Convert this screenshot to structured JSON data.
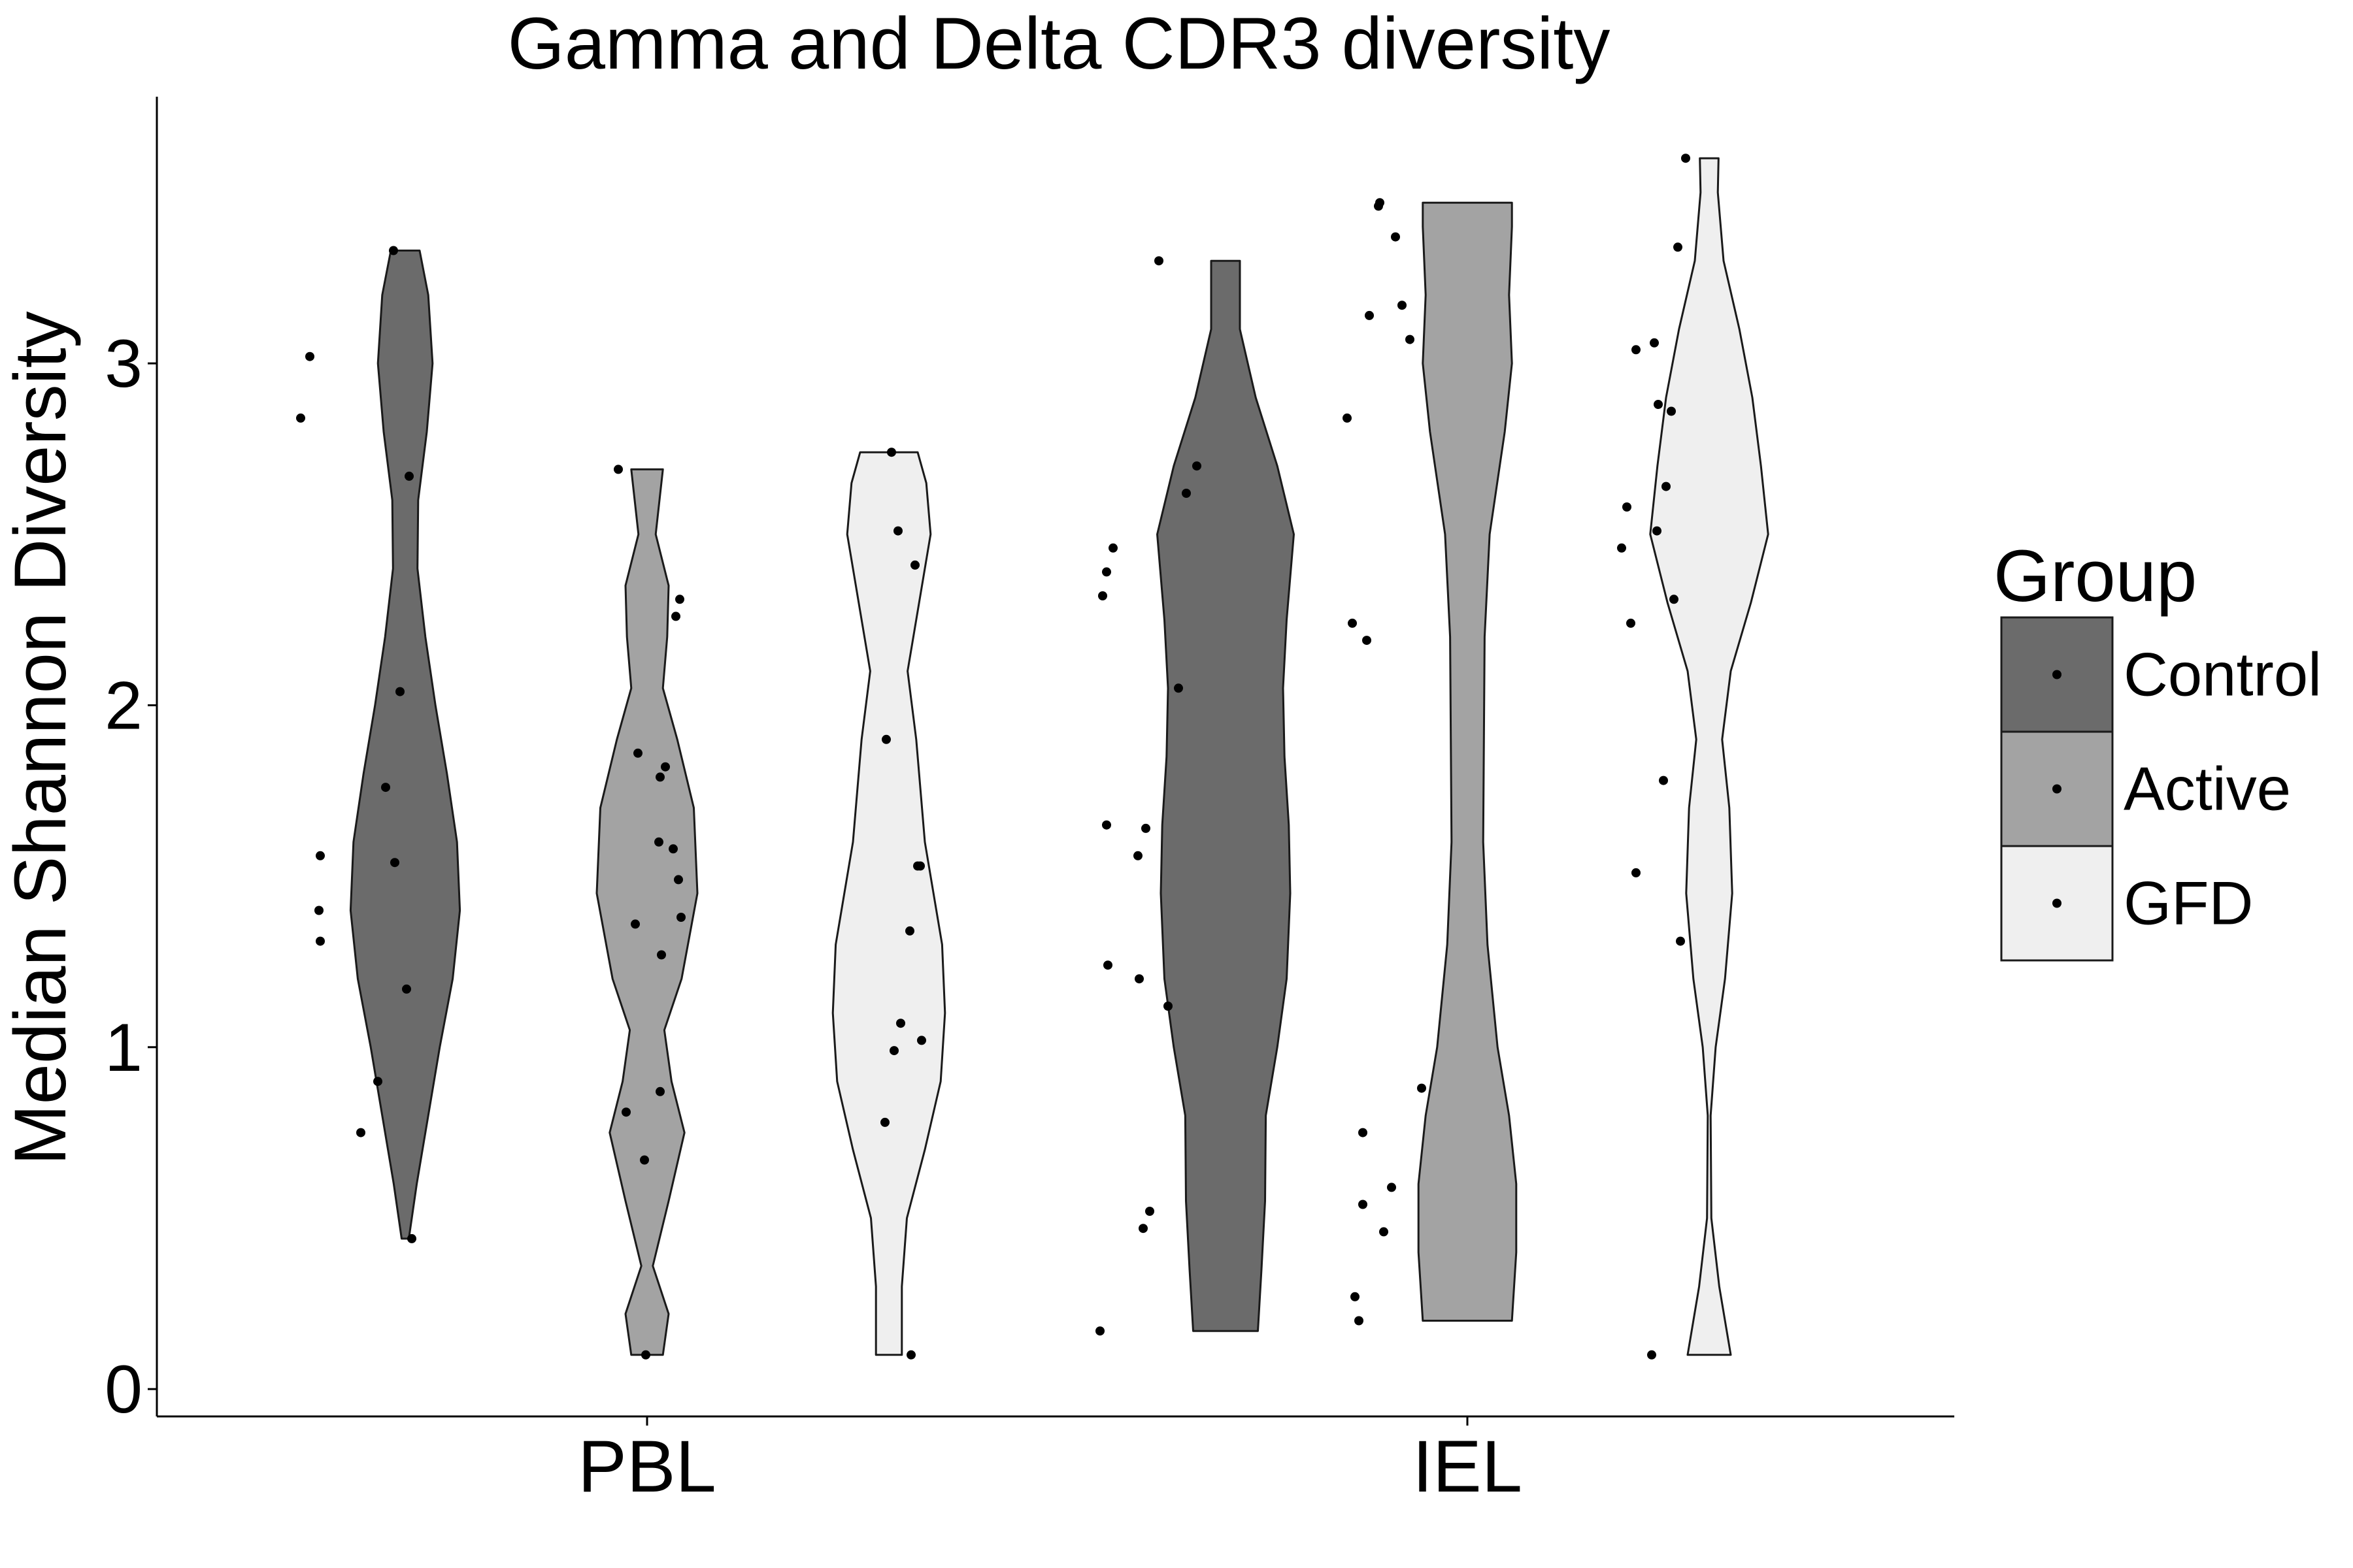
{
  "chart_data": {
    "type": "violin",
    "title": "Gamma and Delta CDR3 diversity",
    "xlabel": "",
    "ylabel": "Median Shannon Diversity",
    "categories": [
      "PBL",
      "IEL"
    ],
    "y_ticks": [
      "0",
      "1",
      "2",
      "3"
    ],
    "ylim": [
      -0.08,
      3.78
    ],
    "legend": {
      "title": "Group",
      "position": "right"
    },
    "grid": false,
    "series": [
      {
        "name": "Control",
        "color": "#6b6b6b",
        "violins": [
          {
            "category": "PBL",
            "range": [
              0.44,
              3.33
            ],
            "density_profile": [
              [
                0.44,
                0.05
              ],
              [
                0.6,
                0.16
              ],
              [
                0.8,
                0.32
              ],
              [
                1.0,
                0.48
              ],
              [
                1.2,
                0.66
              ],
              [
                1.4,
                0.76
              ],
              [
                1.6,
                0.72
              ],
              [
                1.8,
                0.58
              ],
              [
                2.0,
                0.42
              ],
              [
                2.2,
                0.28
              ],
              [
                2.4,
                0.17
              ],
              [
                2.6,
                0.18
              ],
              [
                2.8,
                0.3
              ],
              [
                3.0,
                0.38
              ],
              [
                3.2,
                0.32
              ],
              [
                3.33,
                0.2
              ]
            ],
            "points": [
              [
                -0.8,
                2.84
              ],
              [
                -0.73,
                3.02
              ],
              [
                -0.65,
                1.56
              ],
              [
                -0.66,
                1.4
              ],
              [
                -0.65,
                1.31
              ],
              [
                -0.34,
                0.75
              ],
              [
                -0.21,
                0.9
              ],
              [
                -0.15,
                1.76
              ],
              [
                -0.09,
                3.33
              ],
              [
                -0.08,
                1.54
              ],
              [
                -0.04,
                2.04
              ],
              [
                0.01,
                1.17
              ],
              [
                0.03,
                2.67
              ],
              [
                0.05,
                0.44
              ]
            ]
          },
          {
            "category": "IEL",
            "range": [
              0.17,
              3.3
            ],
            "density_profile": [
              [
                0.17,
                0.45
              ],
              [
                0.35,
                0.5
              ],
              [
                0.55,
                0.55
              ],
              [
                0.8,
                0.56
              ],
              [
                1.0,
                0.72
              ],
              [
                1.2,
                0.85
              ],
              [
                1.45,
                0.9
              ],
              [
                1.65,
                0.88
              ],
              [
                1.85,
                0.82
              ],
              [
                2.05,
                0.8
              ],
              [
                2.25,
                0.85
              ],
              [
                2.5,
                0.95
              ],
              [
                2.7,
                0.72
              ],
              [
                2.9,
                0.42
              ],
              [
                3.1,
                0.2
              ],
              [
                3.3,
                0.2
              ]
            ],
            "points": [
              [
                -0.96,
                0.17
              ],
              [
                -0.94,
                2.32
              ],
              [
                -0.91,
                2.39
              ],
              [
                -0.91,
                1.65
              ],
              [
                -0.9,
                1.24
              ],
              [
                -0.86,
                2.46
              ],
              [
                -0.67,
                1.56
              ],
              [
                -0.66,
                1.2
              ],
              [
                -0.63,
                0.47
              ],
              [
                -0.61,
                1.64
              ],
              [
                -0.58,
                0.52
              ],
              [
                -0.51,
                3.3
              ],
              [
                -0.44,
                1.12
              ],
              [
                -0.36,
                2.05
              ],
              [
                -0.3,
                2.62
              ],
              [
                -0.22,
                2.7
              ]
            ]
          }
        ]
      },
      {
        "name": "Active",
        "color": "#a3a3a3",
        "violins": [
          {
            "category": "PBL",
            "range": [
              0.1,
              2.69
            ],
            "density_profile": [
              [
                0.1,
                0.22
              ],
              [
                0.22,
                0.3
              ],
              [
                0.36,
                0.08
              ],
              [
                0.55,
                0.3
              ],
              [
                0.75,
                0.52
              ],
              [
                0.9,
                0.34
              ],
              [
                1.05,
                0.24
              ],
              [
                1.2,
                0.48
              ],
              [
                1.45,
                0.7
              ],
              [
                1.7,
                0.65
              ],
              [
                1.9,
                0.42
              ],
              [
                2.05,
                0.22
              ],
              [
                2.2,
                0.28
              ],
              [
                2.35,
                0.3
              ],
              [
                2.5,
                0.12
              ],
              [
                2.69,
                0.22
              ]
            ],
            "points": [
              [
                -0.22,
                2.69
              ],
              [
                -0.16,
                0.81
              ],
              [
                -0.07,
                1.86
              ],
              [
                -0.09,
                1.36
              ],
              [
                -0.02,
                0.67
              ],
              [
                -0.01,
                0.1
              ],
              [
                0.09,
                1.6
              ],
              [
                0.1,
                1.79
              ],
              [
                0.1,
                0.87
              ],
              [
                0.11,
                1.27
              ],
              [
                0.14,
                1.82
              ],
              [
                0.2,
                1.58
              ],
              [
                0.22,
                2.26
              ],
              [
                0.24,
                1.49
              ],
              [
                0.25,
                2.31
              ],
              [
                0.26,
                1.38
              ]
            ]
          },
          {
            "category": "IEL",
            "range": [
              0.2,
              3.47
            ],
            "density_profile": [
              [
                0.2,
                0.62
              ],
              [
                0.4,
                0.68
              ],
              [
                0.6,
                0.68
              ],
              [
                0.8,
                0.58
              ],
              [
                1.0,
                0.42
              ],
              [
                1.3,
                0.28
              ],
              [
                1.6,
                0.22
              ],
              [
                1.9,
                0.23
              ],
              [
                2.2,
                0.24
              ],
              [
                2.5,
                0.31
              ],
              [
                2.8,
                0.52
              ],
              [
                3.0,
                0.62
              ],
              [
                3.2,
                0.58
              ],
              [
                3.4,
                0.62
              ],
              [
                3.47,
                0.62
              ]
            ],
            "points": [
              [
                -0.92,
                2.84
              ],
              [
                -0.88,
                2.24
              ],
              [
                -0.86,
                0.27
              ],
              [
                -0.83,
                0.2
              ],
              [
                -0.8,
                0.75
              ],
              [
                -0.8,
                0.54
              ],
              [
                -0.77,
                2.19
              ],
              [
                -0.75,
                3.14
              ],
              [
                -0.68,
                3.46
              ],
              [
                -0.67,
                3.47
              ],
              [
                -0.64,
                0.46
              ],
              [
                -0.58,
                0.59
              ],
              [
                -0.55,
                3.37
              ],
              [
                -0.5,
                3.17
              ],
              [
                -0.44,
                3.07
              ],
              [
                -0.35,
                0.88
              ]
            ]
          }
        ]
      },
      {
        "name": "GFD",
        "color": "#efefef",
        "violins": [
          {
            "category": "PBL",
            "range": [
              0.1,
              2.74
            ],
            "density_profile": [
              [
                0.1,
                0.18
              ],
              [
                0.3,
                0.18
              ],
              [
                0.5,
                0.25
              ],
              [
                0.7,
                0.5
              ],
              [
                0.9,
                0.72
              ],
              [
                1.1,
                0.78
              ],
              [
                1.3,
                0.74
              ],
              [
                1.6,
                0.5
              ],
              [
                1.9,
                0.38
              ],
              [
                2.1,
                0.26
              ],
              [
                2.3,
                0.42
              ],
              [
                2.5,
                0.58
              ],
              [
                2.65,
                0.52
              ],
              [
                2.74,
                0.4
              ]
            ],
            "points": [
              [
                -0.03,
                0.78
              ],
              [
                -0.02,
                1.9
              ],
              [
                0.02,
                2.74
              ],
              [
                0.04,
                0.99
              ],
              [
                0.07,
                2.51
              ],
              [
                0.09,
                1.07
              ],
              [
                0.16,
                1.34
              ],
              [
                0.17,
                0.1
              ],
              [
                0.2,
                2.41
              ],
              [
                0.22,
                1.53
              ],
              [
                0.24,
                1.53
              ],
              [
                0.25,
                1.02
              ]
            ]
          },
          {
            "category": "IEL",
            "range": [
              0.1,
              3.6
            ],
            "density_profile": [
              [
                0.1,
                0.3
              ],
              [
                0.3,
                0.14
              ],
              [
                0.5,
                0.03
              ],
              [
                0.8,
                0.02
              ],
              [
                1.0,
                0.09
              ],
              [
                1.2,
                0.22
              ],
              [
                1.45,
                0.32
              ],
              [
                1.7,
                0.28
              ],
              [
                1.9,
                0.18
              ],
              [
                2.1,
                0.3
              ],
              [
                2.3,
                0.58
              ],
              [
                2.5,
                0.82
              ],
              [
                2.7,
                0.72
              ],
              [
                2.9,
                0.6
              ],
              [
                3.1,
                0.42
              ],
              [
                3.3,
                0.2
              ],
              [
                3.5,
                0.12
              ],
              [
                3.6,
                0.13
              ]
            ],
            "points": [
              [
                -0.67,
                2.46
              ],
              [
                -0.63,
                2.58
              ],
              [
                -0.6,
                2.24
              ],
              [
                -0.56,
                3.04
              ],
              [
                -0.56,
                1.51
              ],
              [
                -0.44,
                0.1
              ],
              [
                -0.42,
                3.06
              ],
              [
                -0.4,
                2.51
              ],
              [
                -0.39,
                2.88
              ],
              [
                -0.35,
                1.78
              ],
              [
                -0.33,
                2.64
              ],
              [
                -0.29,
                2.86
              ],
              [
                -0.27,
                2.31
              ],
              [
                -0.24,
                3.34
              ],
              [
                -0.22,
                1.31
              ],
              [
                -0.18,
                3.6
              ]
            ]
          }
        ]
      }
    ]
  }
}
